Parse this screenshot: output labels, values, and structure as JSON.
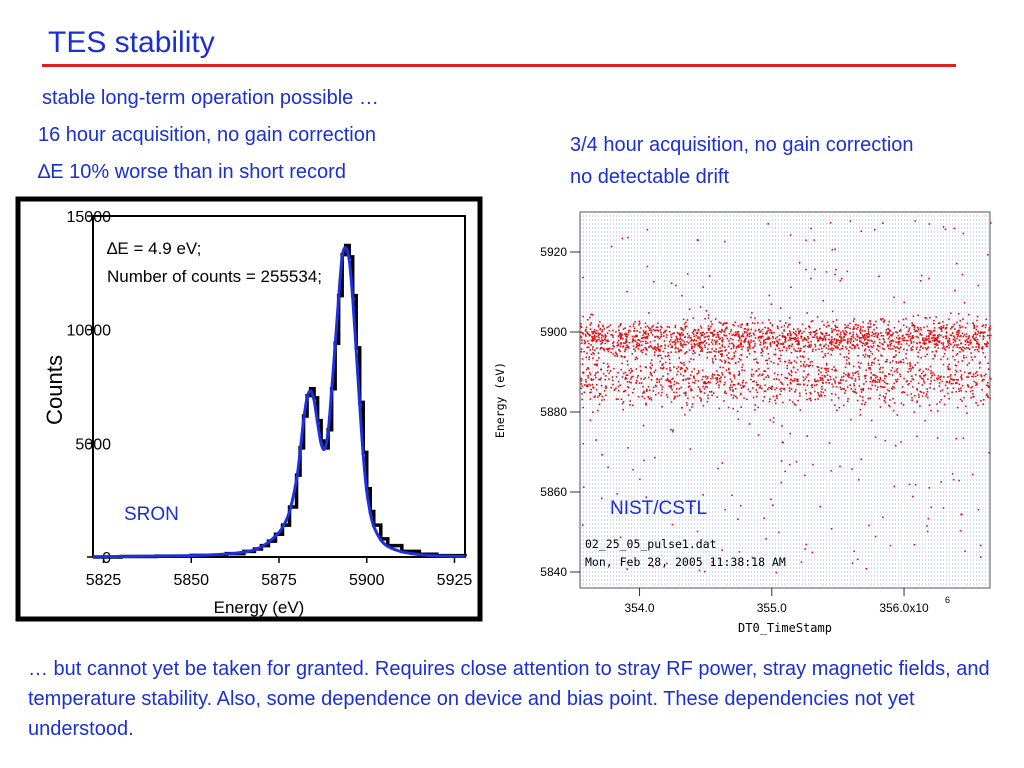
{
  "slide": {
    "title": "TES stability",
    "left_lines": [
      "stable long-term operation possible …",
      "16 hour acquisition, no gain correction",
      "∆E 10% worse than in short record"
    ],
    "right_lines": [
      "3/4 hour acquisition, no gain correction",
      "no detectable drift"
    ],
    "footer": "… but cannot yet be taken for granted.  Requires close attention to stray RF power, stray magnetic fields, and temperature stability.  Also, some dependence on device and bias point.  These dependencies not yet understood."
  },
  "colors": {
    "text_blue": "#1a2fd6",
    "title_rule": "#e02020",
    "fit_line": "#1f2fe0",
    "histogram": "#000000",
    "scatter": "#e01010",
    "grid": "#2840ff"
  },
  "chart_data": [
    {
      "type": "line",
      "xlabel": "Energy (eV)",
      "ylabel": "Counts",
      "xlim": [
        5822,
        5928
      ],
      "ylim": [
        0,
        15000
      ],
      "x_ticks": [
        "5825",
        "5850",
        "5875",
        "5900",
        "5925"
      ],
      "y_ticks": [
        "0",
        "5000",
        "10000",
        "15000"
      ],
      "annotation_lines": [
        "∆E = 4.9 eV;",
        "Number of counts = 255534;"
      ],
      "label": "SRON",
      "series": [
        {
          "type": "step",
          "x": [
            5822,
            5830,
            5840,
            5850,
            5860,
            5865,
            5868,
            5870,
            5872,
            5874,
            5876,
            5878,
            5880,
            5881,
            5882,
            5883,
            5884,
            5885,
            5886,
            5887,
            5888,
            5889,
            5890,
            5891,
            5892,
            5893,
            5894,
            5895,
            5896,
            5897,
            5898,
            5899,
            5900,
            5901,
            5902,
            5904,
            5906,
            5910,
            5915,
            5920,
            5928
          ],
          "y": [
            0,
            20,
            40,
            70,
            150,
            250,
            350,
            500,
            700,
            1000,
            1400,
            2200,
            3600,
            4800,
            6200,
            7100,
            7400,
            7000,
            6000,
            5100,
            4800,
            5600,
            7400,
            9400,
            11500,
            13300,
            13700,
            13200,
            11500,
            9200,
            6800,
            4600,
            3000,
            2000,
            1400,
            800,
            500,
            250,
            120,
            60,
            30
          ]
        },
        {
          "type": "fit",
          "x": [
            5822,
            5830,
            5840,
            5850,
            5860,
            5865,
            5868,
            5870,
            5872,
            5874,
            5876,
            5878,
            5880,
            5881,
            5882,
            5883,
            5884,
            5885,
            5886,
            5887,
            5888,
            5889,
            5890,
            5891,
            5892,
            5893,
            5894,
            5895,
            5896,
            5897,
            5898,
            5899,
            5900,
            5901,
            5902,
            5904,
            5906,
            5910,
            5915,
            5920,
            5928
          ],
          "y": [
            0,
            20,
            40,
            60,
            130,
            220,
            310,
            450,
            650,
            920,
            1300,
            2000,
            3400,
            4600,
            6000,
            7000,
            7300,
            6900,
            5900,
            5000,
            4750,
            5500,
            7300,
            9300,
            11400,
            13200,
            13600,
            13100,
            11400,
            9100,
            6700,
            4500,
            2900,
            1950,
            1350,
            760,
            470,
            230,
            110,
            50,
            25
          ]
        }
      ]
    },
    {
      "type": "scatter",
      "xlabel": "DT0_TimeStamp",
      "ylabel": "Energy (eV)",
      "xlim": [
        353.55,
        356.65
      ],
      "ylim": [
        5836,
        5930
      ],
      "x_ticks": [
        "354.0",
        "355.0",
        "356.0x10"
      ],
      "x_tick_exponent": "6",
      "y_ticks": [
        "5840",
        "5860",
        "5880",
        "5900",
        "5920"
      ],
      "annotation_lines": [
        "02_25_05_pulse1.dat",
        "Mon, Feb 28, 2005 11:38:18 AM"
      ],
      "label": "NIST/CSTL",
      "series": [
        {
          "name": "",
          "band_centers": [
            5898.5,
            5888.0
          ],
          "band_widths": [
            4.0,
            5.5
          ],
          "density": "dense"
        }
      ]
    }
  ]
}
